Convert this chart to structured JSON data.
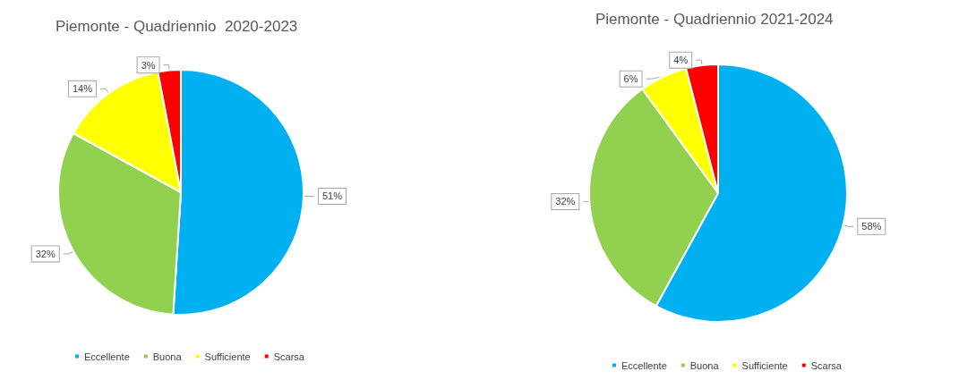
{
  "chart_data": [
    {
      "type": "pie",
      "title": "Piemonte - Quadriennio  2020-2023",
      "categories": [
        "Eccellente",
        "Buona",
        "Sufficiente",
        "Scarsa"
      ],
      "values": [
        51,
        32,
        14,
        3
      ],
      "value_labels": [
        "51%",
        "32%",
        "14%",
        "3%"
      ],
      "colors": [
        "#00b0f0",
        "#92d050",
        "#ffff00",
        "#ff0000"
      ],
      "legend": "bottom"
    },
    {
      "type": "pie",
      "title": "Piemonte - Quadriennio 2021-2024",
      "categories": [
        "Eccellente",
        "Buona",
        "Sufficiente",
        "Scarsa"
      ],
      "values": [
        58,
        32,
        6,
        4
      ],
      "value_labels": [
        "58%",
        "32%",
        "6%",
        "4%"
      ],
      "colors": [
        "#00b0f0",
        "#92d050",
        "#ffff00",
        "#ff0000"
      ],
      "legend": "bottom"
    }
  ]
}
